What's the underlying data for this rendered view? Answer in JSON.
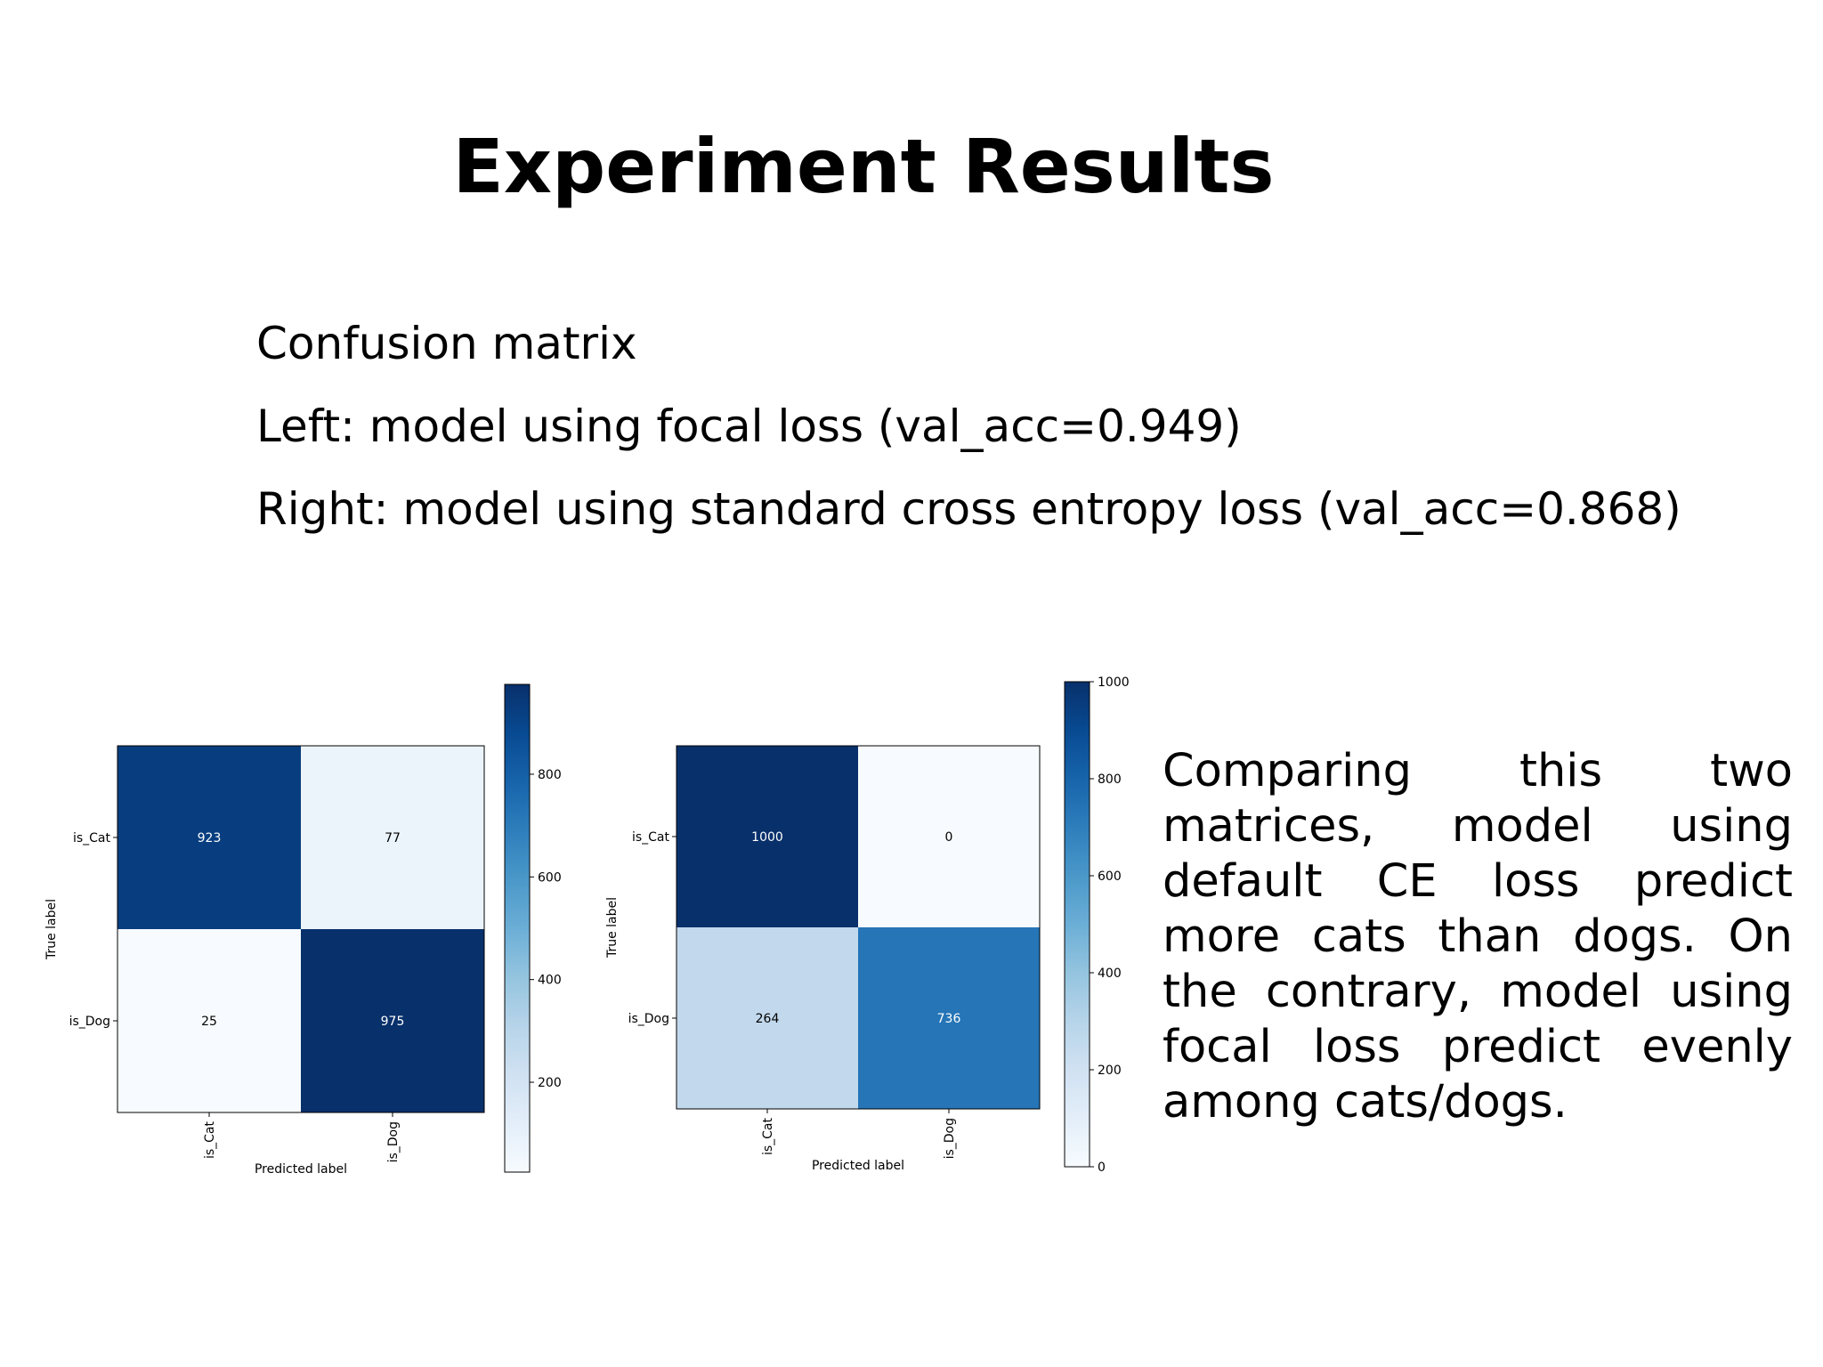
{
  "slide": {
    "title": "Experiment Results",
    "bullets": [
      "Confusion matrix",
      "Left: model using focal loss (val_acc=0.949)",
      "Right: model using standard cross entropy loss (val_acc=0.868)"
    ],
    "note": "Comparing this two matrices, model using default CE loss predict more cats than dogs. On the contrary, model using focal loss predict evenly among cats/dogs."
  },
  "colors": {
    "scale": [
      "#f7fbff",
      "#deebf7",
      "#c6dbef",
      "#9ecae1",
      "#6baed6",
      "#4292c6",
      "#2171b5",
      "#08519c",
      "#08306b"
    ]
  },
  "chart_data": [
    {
      "type": "heatmap",
      "title": "",
      "xlabel": "Predicted label",
      "ylabel": "True label",
      "x_categories": [
        "is_Cat",
        "is_Dog"
      ],
      "y_categories": [
        "is_Cat",
        "is_Dog"
      ],
      "values": [
        [
          923,
          77
        ],
        [
          25,
          975
        ]
      ],
      "colorbar": {
        "min": 25,
        "max": 975,
        "ticks": [
          200,
          400,
          600,
          800
        ]
      }
    },
    {
      "type": "heatmap",
      "title": "",
      "xlabel": "Predicted label",
      "ylabel": "True label",
      "x_categories": [
        "is_Cat",
        "is_Dog"
      ],
      "y_categories": [
        "is_Cat",
        "is_Dog"
      ],
      "values": [
        [
          1000,
          0
        ],
        [
          264,
          736
        ]
      ],
      "colorbar": {
        "min": 0,
        "max": 1000,
        "ticks": [
          0,
          200,
          400,
          600,
          800,
          1000
        ]
      }
    }
  ]
}
